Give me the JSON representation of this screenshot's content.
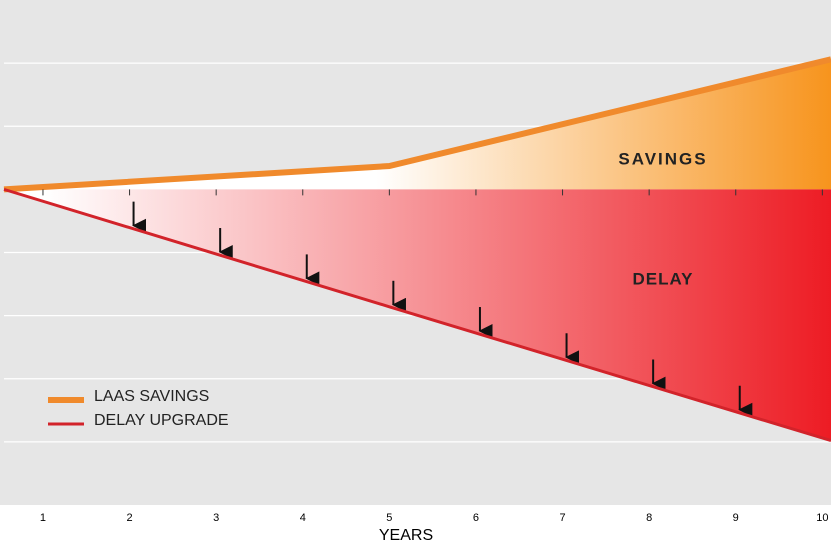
{
  "chart_data": {
    "type": "line",
    "x_label": "YEARS",
    "annotations": [
      "SAVINGS",
      "DELAY"
    ],
    "x": [
      0.55,
      5,
      10.1
    ],
    "series": [
      {
        "name": "LAAS SAVINGS",
        "color": "#f08a2c",
        "area_color": "#f7941d",
        "values": [
          0,
          0.37,
          2.06
        ]
      },
      {
        "name": "DELAY UPGRADE",
        "color": "#d2232a",
        "area_color": "#ed1c24",
        "values": [
          0,
          -1.86,
          -3.98
        ]
      }
    ],
    "xlim": [
      0.55,
      10.1
    ],
    "xticks": [
      1,
      2,
      3,
      4,
      5,
      6,
      7,
      8,
      9,
      10
    ],
    "ylim": [
      -5,
      3
    ],
    "yticks": [
      -4,
      -3,
      -2,
      -1,
      0,
      1,
      2
    ],
    "grid": true,
    "background": "#e6e6e6"
  }
}
